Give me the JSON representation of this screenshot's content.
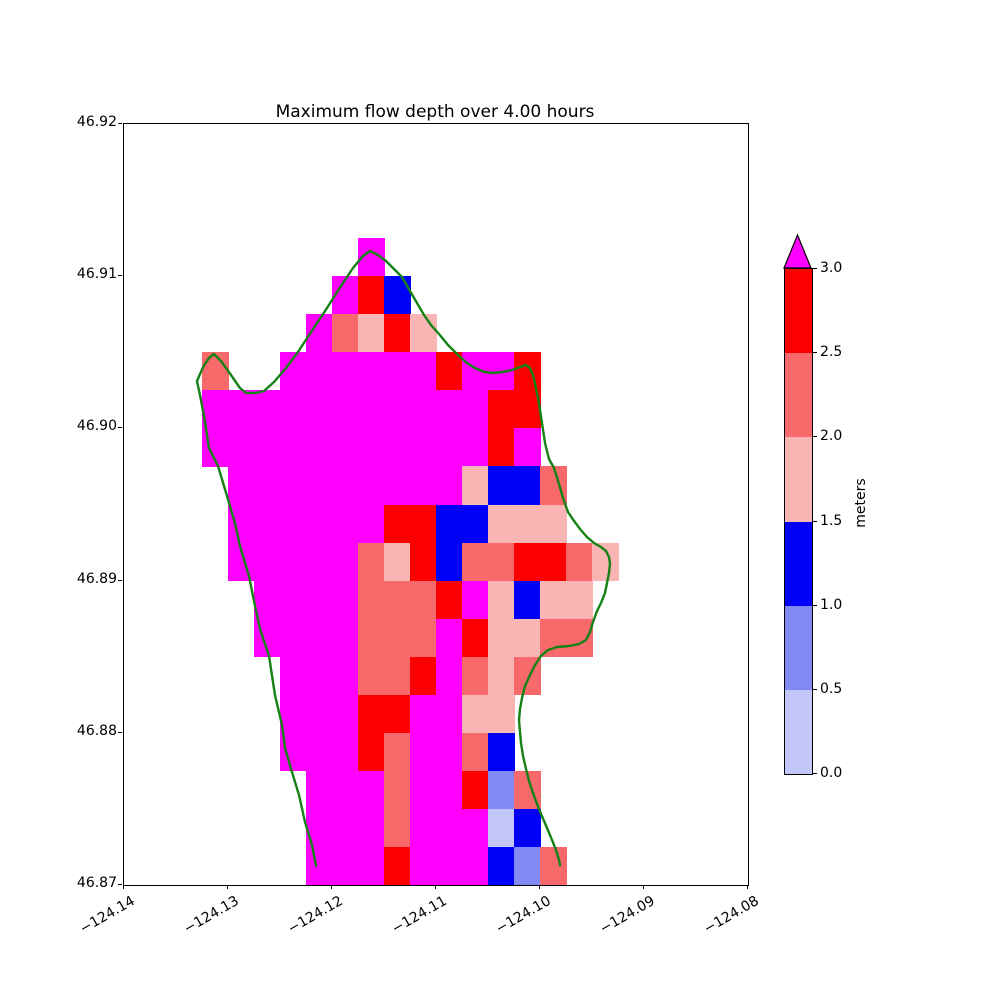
{
  "title": "Maximum flow depth over 4.00 hours",
  "axes": {
    "x_tick_labels": [
      "−124.14",
      "−124.13",
      "−124.12",
      "−124.11",
      "−124.10",
      "−124.09",
      "−124.08"
    ],
    "x_tick_values": [
      -124.14,
      -124.13,
      -124.12,
      -124.11,
      -124.1,
      -124.09,
      -124.08
    ],
    "y_tick_labels": [
      "46.92",
      "46.91",
      "46.90",
      "46.89",
      "46.88",
      "46.87"
    ],
    "y_tick_values": [
      46.92,
      46.91,
      46.9,
      46.89,
      46.88,
      46.87
    ]
  },
  "colorbar": {
    "label": "meters",
    "tick_labels": [
      "0.0",
      "0.5",
      "1.0",
      "1.5",
      "2.0",
      "2.5",
      "3.0"
    ],
    "segment_colors_bottom_to_top": [
      "#c2c6f8",
      "#8289f2",
      "#0000f8",
      "#f9b4b4",
      "#f8696b",
      "#fa0000"
    ],
    "over_color": "#ff00ff"
  },
  "chart_data": {
    "type": "heatmap",
    "title": "Maximum flow depth over 4.00 hours",
    "xlabel": "",
    "ylabel": "meters",
    "xlim": [
      -124.14,
      -124.08
    ],
    "ylim": [
      46.87,
      46.92
    ],
    "cell_size_deg": 0.0025,
    "grid_origin": {
      "lon": -124.14,
      "lat_top": 46.92
    },
    "ncols": 24,
    "nrows": 20,
    "legend": {
      "M": {
        "range_m": "> 3.0",
        "color": "#ff00ff"
      },
      "R": {
        "range_m": "2.5 - 3.0",
        "color": "#fa0000"
      },
      "S": {
        "range_m": "2.0 - 2.5",
        "color": "#f8696b"
      },
      "P": {
        "range_m": "1.5 - 2.0",
        "color": "#f9b4b4"
      },
      "B": {
        "range_m": "1.0 - 1.5",
        "color": "#0000f8"
      },
      "C": {
        "range_m": "0.5 - 1.0",
        "color": "#8289f2"
      },
      "L": {
        "range_m": "0.0 - 0.5",
        "color": "#c2c6f8"
      },
      ".": {
        "range_m": "no data",
        "color": "none"
      }
    },
    "rows": [
      "........................",
      "........................",
      "........................",
      ".........M..............",
      "........MRB.............",
      ".......MSPRP............",
      "...S..MMMMMMRMMR........",
      "...MMMMMMMMMMMRR........",
      "...MMMMMMMMMMMRM........",
      "....MMMMMMMMMPBBS.......",
      "....MMMMMMRRBBPPP.......",
      "....MMMMMSPRBSSRRSP.....",
      ".....MMMMSSSRMPBPP......",
      ".....MMMMSSSMRPPSS......",
      "......MMMSSRMSPS........",
      "......MMMRRMMPP.........",
      "......MMMRSMMSB.........",
      ".......MMMSMMRCS........",
      ".......MMMSMMMLB........",
      ".......MMMRMMMBCS......."
    ],
    "coastline_color": "#148214",
    "coastline": [
      [
        -124.12154,
        46.87125
      ],
      [
        -124.12192,
        46.87263
      ],
      [
        -124.1226,
        46.87414
      ],
      [
        -124.12317,
        46.87591
      ],
      [
        -124.12385,
        46.87742
      ],
      [
        -124.12452,
        46.879
      ],
      [
        -124.12481,
        46.88051
      ],
      [
        -124.12548,
        46.88248
      ],
      [
        -124.12606,
        46.88505
      ],
      [
        -124.12692,
        46.88682
      ],
      [
        -124.1274,
        46.88833
      ],
      [
        -124.12798,
        46.8903
      ],
      [
        -124.12885,
        46.89227
      ],
      [
        -124.12933,
        46.89378
      ],
      [
        -124.1301,
        46.89556
      ],
      [
        -124.13096,
        46.89753
      ],
      [
        -124.13183,
        46.89871
      ],
      [
        -124.13231,
        46.90081
      ],
      [
        -124.13269,
        46.90219
      ],
      [
        -124.13298,
        46.90311
      ],
      [
        -124.1324,
        46.90403
      ],
      [
        -124.13183,
        46.90463
      ],
      [
        -124.13135,
        46.90489
      ],
      [
        -124.13067,
        46.90443
      ],
      [
        -124.12971,
        46.90351
      ],
      [
        -124.12885,
        46.90265
      ],
      [
        -124.12827,
        46.90233
      ],
      [
        -124.12731,
        46.90233
      ],
      [
        -124.12654,
        46.90246
      ],
      [
        -124.12558,
        46.90305
      ],
      [
        -124.12442,
        46.90397
      ],
      [
        -124.12327,
        46.90502
      ],
      [
        -124.12202,
        46.90633
      ],
      [
        -124.12067,
        46.90771
      ],
      [
        -124.11933,
        46.90916
      ],
      [
        -124.11798,
        46.91054
      ],
      [
        -124.11702,
        46.91133
      ],
      [
        -124.11635,
        46.91166
      ],
      [
        -124.11558,
        46.91139
      ],
      [
        -124.11481,
        46.911
      ],
      [
        -124.11404,
        46.91047
      ],
      [
        -124.11327,
        46.90995
      ],
      [
        -124.1125,
        46.90903
      ],
      [
        -124.11183,
        46.90824
      ],
      [
        -124.11115,
        46.90745
      ],
      [
        -124.11048,
        46.90679
      ],
      [
        -124.10971,
        46.9062
      ],
      [
        -124.10885,
        46.90548
      ],
      [
        -124.10788,
        46.90482
      ],
      [
        -124.10702,
        46.9043
      ],
      [
        -124.10625,
        46.90397
      ],
      [
        -124.10538,
        46.90371
      ],
      [
        -124.10452,
        46.90364
      ],
      [
        -124.10356,
        46.90371
      ],
      [
        -124.10269,
        46.90384
      ],
      [
        -124.10192,
        46.90403
      ],
      [
        -124.10135,
        46.90417
      ],
      [
        -124.10096,
        46.90397
      ],
      [
        -124.10067,
        46.90351
      ],
      [
        -124.10038,
        46.90265
      ],
      [
        -124.1001,
        46.90167
      ],
      [
        -124.09981,
        46.90035
      ],
      [
        -124.09952,
        46.89904
      ],
      [
        -124.09913,
        46.89799
      ],
      [
        -124.09865,
        46.8974
      ],
      [
        -124.09817,
        46.89635
      ],
      [
        -124.09779,
        46.89543
      ],
      [
        -124.09731,
        46.89451
      ],
      [
        -124.09673,
        46.89392
      ],
      [
        -124.09615,
        46.89339
      ],
      [
        -124.09548,
        46.89286
      ],
      [
        -124.09481,
        46.89247
      ],
      [
        -124.09413,
        46.89221
      ],
      [
        -124.09365,
        46.89194
      ],
      [
        -124.09337,
        46.89155
      ],
      [
        -124.09327,
        46.89109
      ],
      [
        -124.09337,
        46.8905
      ],
      [
        -124.09356,
        46.88984
      ],
      [
        -124.09375,
        46.88919
      ],
      [
        -124.09413,
        46.88853
      ],
      [
        -124.09452,
        46.888
      ],
      [
        -124.0949,
        46.88728
      ],
      [
        -124.09519,
        46.88662
      ],
      [
        -124.09558,
        46.8861
      ],
      [
        -124.09625,
        46.88583
      ],
      [
        -124.09721,
        46.8857
      ],
      [
        -124.09837,
        46.88564
      ],
      [
        -124.09923,
        46.88544
      ],
      [
        -124.0999,
        46.88505
      ],
      [
        -124.10048,
        46.88445
      ],
      [
        -124.10096,
        46.8838
      ],
      [
        -124.10144,
        46.88307
      ],
      [
        -124.10173,
        46.88229
      ],
      [
        -124.10192,
        46.88156
      ],
      [
        -124.10202,
        46.88084
      ],
      [
        -124.10192,
        46.88005
      ],
      [
        -124.10183,
        46.87933
      ],
      [
        -124.10163,
        46.87848
      ],
      [
        -124.10135,
        46.87762
      ],
      [
        -124.10106,
        46.87683
      ],
      [
        -124.10067,
        46.87604
      ],
      [
        -124.10029,
        46.87532
      ],
      [
        -124.0999,
        46.87467
      ],
      [
        -124.09933,
        46.87375
      ],
      [
        -124.09885,
        46.87296
      ],
      [
        -124.09846,
        46.8723
      ],
      [
        -124.09817,
        46.87164
      ],
      [
        -124.09808,
        46.87131
      ]
    ]
  }
}
